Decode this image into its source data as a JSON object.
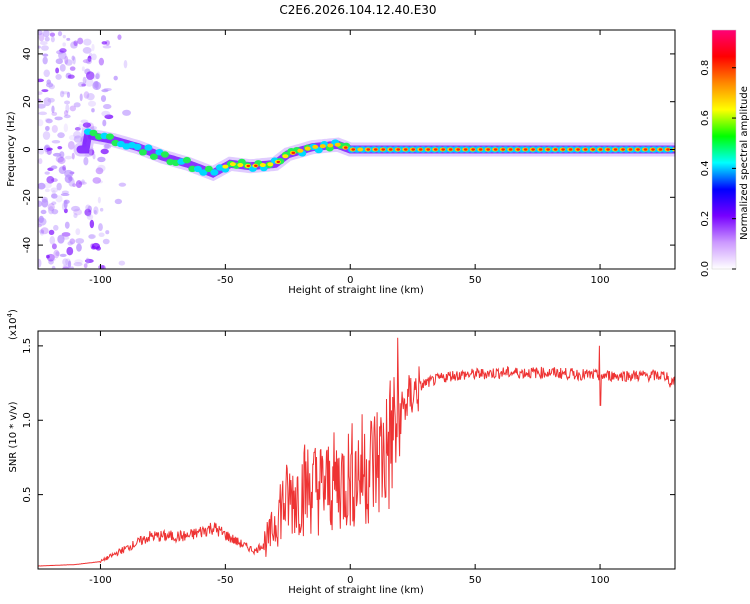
{
  "title": "C2E6.2026.104.12.40.E30",
  "chart_data": [
    {
      "type": "heatmap",
      "name": "spectrogram",
      "xlabel": "Height of straight line (km)",
      "ylabel": "Frequency (Hz)",
      "xlim": [
        -125,
        130
      ],
      "ylim": [
        -50,
        50
      ],
      "xticks": [
        -100,
        -50,
        0,
        50,
        100
      ],
      "xtick_labels": [
        "-100",
        "-50",
        "0",
        "50",
        "100"
      ],
      "yticks": [
        -40,
        -20,
        0,
        20,
        40
      ],
      "ytick_labels": [
        "-40",
        "-20",
        "0",
        "20",
        "40"
      ],
      "ridge": [
        {
          "x": -105,
          "y": 6
        },
        {
          "x": -95,
          "y": 4
        },
        {
          "x": -85,
          "y": 1
        },
        {
          "x": -75,
          "y": -3
        },
        {
          "x": -65,
          "y": -6
        },
        {
          "x": -55,
          "y": -10
        },
        {
          "x": -48,
          "y": -6
        },
        {
          "x": -40,
          "y": -7
        },
        {
          "x": -30,
          "y": -6
        },
        {
          "x": -25,
          "y": -2
        },
        {
          "x": -15,
          "y": 1
        },
        {
          "x": -5,
          "y": 2
        },
        {
          "x": 0,
          "y": 0
        },
        {
          "x": 10,
          "y": 0
        },
        {
          "x": 50,
          "y": 0
        },
        {
          "x": 100,
          "y": 0
        },
        {
          "x": 130,
          "y": 0
        }
      ],
      "colorbar": {
        "label": "Normalized spectral amplitude",
        "range": [
          0,
          0.95
        ],
        "ticks": [
          0.0,
          0.2,
          0.4,
          0.6,
          0.8
        ],
        "tick_labels": [
          "0.0",
          "0.2",
          "0.4",
          "0.6",
          "0.8"
        ],
        "colors": [
          "#ffffff",
          "#cc99ff",
          "#7700ff",
          "#0000ff",
          "#00ffff",
          "#00ff00",
          "#ffff00",
          "#ff8800",
          "#ff0000",
          "#ff0077"
        ]
      }
    },
    {
      "type": "line",
      "name": "snr",
      "xlabel": "Height of straight line (km)",
      "ylabel": "SNR (10 * v/v)",
      "exponent_label": "(x10",
      "exponent_power": "4",
      "exponent_close": ")",
      "xlim": [
        -125,
        130
      ],
      "ylim": [
        0,
        1.6
      ],
      "xticks": [
        -100,
        -50,
        0,
        50,
        100
      ],
      "xtick_labels": [
        "-100",
        "-50",
        "0",
        "50",
        "100"
      ],
      "yticks": [
        0.5,
        1.0,
        1.5
      ],
      "ytick_labels": [
        "0.5",
        "1.0",
        "1.5"
      ],
      "color": "#ee3333",
      "series": [
        {
          "x": -125,
          "y": 0.02
        },
        {
          "x": -110,
          "y": 0.03
        },
        {
          "x": -100,
          "y": 0.05
        },
        {
          "x": -92,
          "y": 0.12
        },
        {
          "x": -80,
          "y": 0.22
        },
        {
          "x": -65,
          "y": 0.22
        },
        {
          "x": -55,
          "y": 0.28
        },
        {
          "x": -45,
          "y": 0.18
        },
        {
          "x": -38,
          "y": 0.12
        },
        {
          "x": -32,
          "y": 0.22
        },
        {
          "x": -28,
          "y": 0.42
        },
        {
          "x": -22,
          "y": 0.5
        },
        {
          "x": -18,
          "y": 0.55
        },
        {
          "x": -10,
          "y": 0.55
        },
        {
          "x": 0,
          "y": 0.62
        },
        {
          "x": 10,
          "y": 0.72
        },
        {
          "x": 15,
          "y": 0.8
        },
        {
          "x": 20,
          "y": 1.05
        },
        {
          "x": 25,
          "y": 1.18
        },
        {
          "x": 30,
          "y": 1.25
        },
        {
          "x": 40,
          "y": 1.3
        },
        {
          "x": 60,
          "y": 1.32
        },
        {
          "x": 80,
          "y": 1.32
        },
        {
          "x": 100,
          "y": 1.3
        },
        {
          "x": 120,
          "y": 1.3
        },
        {
          "x": 130,
          "y": 1.3
        }
      ]
    }
  ]
}
